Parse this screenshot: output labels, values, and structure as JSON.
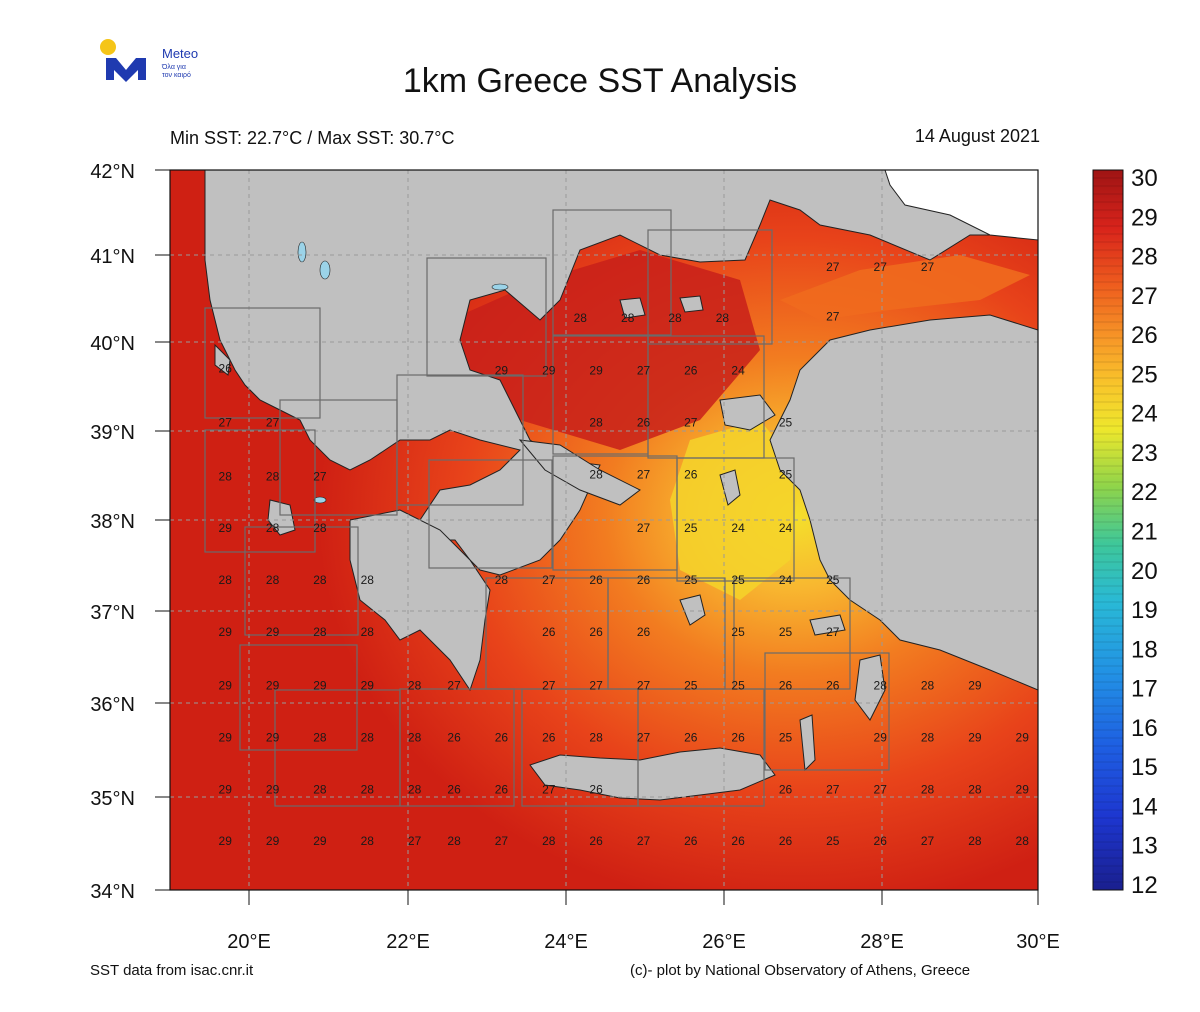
{
  "logo": {
    "brand": "Meteo",
    "tagline_line1": "Όλα για",
    "tagline_line2": "τον καιρό"
  },
  "title": "1km Greece SST Analysis",
  "subtitle_left": "Min SST: 22.7°C / Max SST: 30.7°C",
  "subtitle_right": "14 August 2021",
  "footer_left": "SST data from isac.cnr.it",
  "footer_right": "(c)- plot by National Observatory of Athens, Greece",
  "lat_labels": [
    "42°N",
    "41°N",
    "40°N",
    "39°N",
    "38°N",
    "37°N",
    "36°N",
    "35°N",
    "34°N"
  ],
  "lon_labels": [
    "20°E",
    "22°E",
    "24°E",
    "26°E",
    "28°E",
    "30°E"
  ],
  "colorbar_labels": [
    "30",
    "29",
    "28",
    "27",
    "26",
    "25",
    "24",
    "23",
    "22",
    "21",
    "20",
    "19",
    "18",
    "17",
    "16",
    "15",
    "14",
    "13",
    "12"
  ],
  "colors": {
    "land": "#c0c0c0",
    "sea_hot": "#cc1f12",
    "sea_warm": "#ef5a1a",
    "sea_mild": "#f7a227",
    "sea_cool": "#f2de2a",
    "box_border": "#6b6b6b"
  },
  "sst_labels": [
    {
      "lon": 19.6,
      "lat": 41.0,
      "v": ""
    },
    {
      "lon": 19.7,
      "lat": 39.75,
      "v": "26"
    },
    {
      "lon": 19.7,
      "lat": 39.15,
      "v": "27"
    },
    {
      "lon": 20.3,
      "lat": 39.15,
      "v": "27"
    },
    {
      "lon": 19.7,
      "lat": 38.55,
      "v": "28"
    },
    {
      "lon": 20.3,
      "lat": 38.55,
      "v": "28"
    },
    {
      "lon": 20.9,
      "lat": 38.55,
      "v": "27"
    },
    {
      "lon": 19.7,
      "lat": 37.98,
      "v": "29"
    },
    {
      "lon": 20.3,
      "lat": 37.98,
      "v": "28"
    },
    {
      "lon": 20.9,
      "lat": 37.98,
      "v": "28"
    },
    {
      "lon": 19.7,
      "lat": 37.4,
      "v": "28"
    },
    {
      "lon": 20.3,
      "lat": 37.4,
      "v": "28"
    },
    {
      "lon": 20.9,
      "lat": 37.4,
      "v": "28"
    },
    {
      "lon": 21.5,
      "lat": 37.4,
      "v": "28"
    },
    {
      "lon": 19.7,
      "lat": 36.82,
      "v": "29"
    },
    {
      "lon": 20.3,
      "lat": 36.82,
      "v": "29"
    },
    {
      "lon": 20.9,
      "lat": 36.82,
      "v": "28"
    },
    {
      "lon": 21.5,
      "lat": 36.82,
      "v": "28"
    },
    {
      "lon": 19.7,
      "lat": 36.23,
      "v": "29"
    },
    {
      "lon": 20.3,
      "lat": 36.23,
      "v": "29"
    },
    {
      "lon": 20.9,
      "lat": 36.23,
      "v": "29"
    },
    {
      "lon": 21.5,
      "lat": 36.23,
      "v": "29"
    },
    {
      "lon": 22.1,
      "lat": 36.23,
      "v": "28"
    },
    {
      "lon": 22.6,
      "lat": 36.23,
      "v": "27"
    },
    {
      "lon": 23.8,
      "lat": 36.23,
      "v": "27"
    },
    {
      "lon": 24.4,
      "lat": 36.23,
      "v": "27"
    },
    {
      "lon": 25.0,
      "lat": 36.23,
      "v": "27"
    },
    {
      "lon": 25.6,
      "lat": 36.23,
      "v": "25"
    },
    {
      "lon": 26.2,
      "lat": 36.23,
      "v": "25"
    },
    {
      "lon": 26.8,
      "lat": 36.23,
      "v": "26"
    },
    {
      "lon": 27.4,
      "lat": 36.23,
      "v": "26"
    },
    {
      "lon": 28.0,
      "lat": 36.23,
      "v": "28"
    },
    {
      "lon": 28.6,
      "lat": 36.23,
      "v": "28"
    },
    {
      "lon": 29.2,
      "lat": 36.23,
      "v": "29"
    },
    {
      "lon": 19.7,
      "lat": 35.65,
      "v": "29"
    },
    {
      "lon": 20.3,
      "lat": 35.65,
      "v": "29"
    },
    {
      "lon": 20.9,
      "lat": 35.65,
      "v": "28"
    },
    {
      "lon": 21.5,
      "lat": 35.65,
      "v": "28"
    },
    {
      "lon": 22.1,
      "lat": 35.65,
      "v": "28"
    },
    {
      "lon": 22.6,
      "lat": 35.65,
      "v": "26"
    },
    {
      "lon": 23.2,
      "lat": 35.65,
      "v": "26"
    },
    {
      "lon": 23.8,
      "lat": 35.65,
      "v": "26"
    },
    {
      "lon": 24.4,
      "lat": 35.65,
      "v": "28"
    },
    {
      "lon": 25.0,
      "lat": 35.65,
      "v": "27"
    },
    {
      "lon": 25.6,
      "lat": 35.65,
      "v": "26"
    },
    {
      "lon": 26.2,
      "lat": 35.65,
      "v": "26"
    },
    {
      "lon": 26.8,
      "lat": 35.65,
      "v": "25"
    },
    {
      "lon": 28.0,
      "lat": 35.65,
      "v": "29"
    },
    {
      "lon": 28.6,
      "lat": 35.65,
      "v": "28"
    },
    {
      "lon": 29.2,
      "lat": 35.65,
      "v": "29"
    },
    {
      "lon": 29.8,
      "lat": 35.65,
      "v": "29"
    },
    {
      "lon": 19.7,
      "lat": 35.07,
      "v": "29"
    },
    {
      "lon": 20.3,
      "lat": 35.07,
      "v": "29"
    },
    {
      "lon": 20.9,
      "lat": 35.07,
      "v": "28"
    },
    {
      "lon": 21.5,
      "lat": 35.07,
      "v": "28"
    },
    {
      "lon": 22.1,
      "lat": 35.07,
      "v": "28"
    },
    {
      "lon": 22.6,
      "lat": 35.07,
      "v": "26"
    },
    {
      "lon": 23.2,
      "lat": 35.07,
      "v": "26"
    },
    {
      "lon": 23.8,
      "lat": 35.07,
      "v": "27"
    },
    {
      "lon": 24.4,
      "lat": 35.07,
      "v": "26"
    },
    {
      "lon": 26.8,
      "lat": 35.07,
      "v": "26"
    },
    {
      "lon": 27.4,
      "lat": 35.07,
      "v": "27"
    },
    {
      "lon": 28.0,
      "lat": 35.07,
      "v": "27"
    },
    {
      "lon": 28.6,
      "lat": 35.07,
      "v": "28"
    },
    {
      "lon": 29.2,
      "lat": 35.07,
      "v": "28"
    },
    {
      "lon": 29.8,
      "lat": 35.07,
      "v": "29"
    },
    {
      "lon": 19.7,
      "lat": 34.5,
      "v": "29"
    },
    {
      "lon": 20.3,
      "lat": 34.5,
      "v": "29"
    },
    {
      "lon": 20.9,
      "lat": 34.5,
      "v": "29"
    },
    {
      "lon": 21.5,
      "lat": 34.5,
      "v": "28"
    },
    {
      "lon": 22.1,
      "lat": 34.5,
      "v": "27"
    },
    {
      "lon": 22.6,
      "lat": 34.5,
      "v": "28"
    },
    {
      "lon": 23.2,
      "lat": 34.5,
      "v": "27"
    },
    {
      "lon": 23.8,
      "lat": 34.5,
      "v": "28"
    },
    {
      "lon": 24.4,
      "lat": 34.5,
      "v": "26"
    },
    {
      "lon": 25.0,
      "lat": 34.5,
      "v": "27"
    },
    {
      "lon": 25.6,
      "lat": 34.5,
      "v": "26"
    },
    {
      "lon": 26.2,
      "lat": 34.5,
      "v": "26"
    },
    {
      "lon": 26.8,
      "lat": 34.5,
      "v": "26"
    },
    {
      "lon": 27.4,
      "lat": 34.5,
      "v": "25"
    },
    {
      "lon": 28.0,
      "lat": 34.5,
      "v": "26"
    },
    {
      "lon": 28.6,
      "lat": 34.5,
      "v": "27"
    },
    {
      "lon": 29.2,
      "lat": 34.5,
      "v": "28"
    },
    {
      "lon": 29.8,
      "lat": 34.5,
      "v": "28"
    },
    {
      "lon": 24.2,
      "lat": 40.31,
      "v": "28"
    },
    {
      "lon": 24.8,
      "lat": 40.31,
      "v": "28"
    },
    {
      "lon": 25.4,
      "lat": 40.31,
      "v": "28"
    },
    {
      "lon": 26.0,
      "lat": 40.31,
      "v": "28"
    },
    {
      "lon": 23.2,
      "lat": 39.73,
      "v": "29"
    },
    {
      "lon": 23.8,
      "lat": 39.73,
      "v": "29"
    },
    {
      "lon": 24.4,
      "lat": 39.73,
      "v": "29"
    },
    {
      "lon": 25.0,
      "lat": 39.73,
      "v": "27"
    },
    {
      "lon": 25.6,
      "lat": 39.73,
      "v": "26"
    },
    {
      "lon": 26.2,
      "lat": 39.73,
      "v": "24"
    },
    {
      "lon": 24.4,
      "lat": 39.15,
      "v": "28"
    },
    {
      "lon": 25.0,
      "lat": 39.15,
      "v": "26"
    },
    {
      "lon": 25.6,
      "lat": 39.15,
      "v": "27"
    },
    {
      "lon": 26.8,
      "lat": 39.15,
      "v": "25"
    },
    {
      "lon": 24.4,
      "lat": 38.57,
      "v": "28"
    },
    {
      "lon": 25.0,
      "lat": 38.57,
      "v": "27"
    },
    {
      "lon": 25.6,
      "lat": 38.57,
      "v": "26"
    },
    {
      "lon": 26.8,
      "lat": 38.57,
      "v": "25"
    },
    {
      "lon": 25.0,
      "lat": 37.98,
      "v": "27"
    },
    {
      "lon": 25.6,
      "lat": 37.98,
      "v": "25"
    },
    {
      "lon": 26.2,
      "lat": 37.98,
      "v": "24"
    },
    {
      "lon": 26.8,
      "lat": 37.98,
      "v": "24"
    },
    {
      "lon": 23.2,
      "lat": 37.4,
      "v": "28"
    },
    {
      "lon": 23.8,
      "lat": 37.4,
      "v": "27"
    },
    {
      "lon": 24.4,
      "lat": 37.4,
      "v": "26"
    },
    {
      "lon": 25.0,
      "lat": 37.4,
      "v": "26"
    },
    {
      "lon": 25.6,
      "lat": 37.4,
      "v": "25"
    },
    {
      "lon": 26.2,
      "lat": 37.4,
      "v": "25"
    },
    {
      "lon": 26.8,
      "lat": 37.4,
      "v": "24"
    },
    {
      "lon": 27.4,
      "lat": 37.4,
      "v": "25"
    },
    {
      "lon": 23.8,
      "lat": 36.82,
      "v": "26"
    },
    {
      "lon": 24.4,
      "lat": 36.82,
      "v": "26"
    },
    {
      "lon": 25.0,
      "lat": 36.82,
      "v": "26"
    },
    {
      "lon": 26.2,
      "lat": 36.82,
      "v": "25"
    },
    {
      "lon": 26.8,
      "lat": 36.82,
      "v": "25"
    },
    {
      "lon": 27.4,
      "lat": 36.82,
      "v": "27"
    },
    {
      "lon": 27.4,
      "lat": 40.88,
      "v": "27"
    },
    {
      "lon": 28.0,
      "lat": 40.88,
      "v": "27"
    },
    {
      "lon": 28.6,
      "lat": 40.88,
      "v": "27"
    },
    {
      "lon": 27.4,
      "lat": 40.33,
      "v": "27"
    }
  ]
}
